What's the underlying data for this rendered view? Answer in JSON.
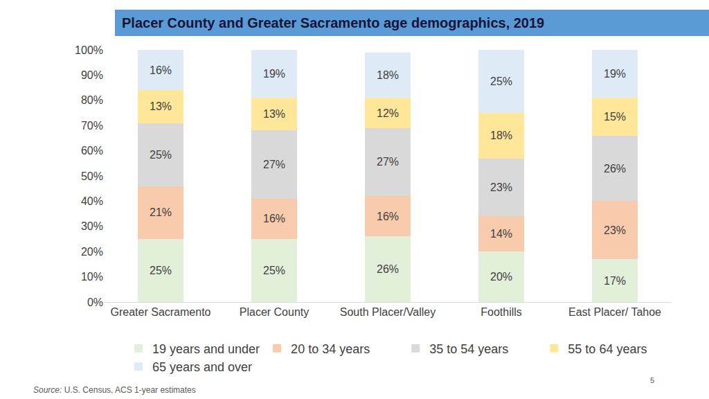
{
  "chart_data": {
    "type": "bar",
    "title": "Placer County and Greater Sacramento age demographics, 2019",
    "categories": [
      "Greater Sacramento",
      "Placer County",
      "South Placer/Valley",
      "Foothills",
      "East Placer/ Tahoe"
    ],
    "series": [
      {
        "name": "19 years and under",
        "color": "#e2efd9",
        "values": [
          25,
          25,
          26,
          20,
          17
        ],
        "value_labels": [
          "25%",
          "25%",
          "26%",
          "20%",
          "17%"
        ]
      },
      {
        "name": "20 to 34 years",
        "color": "#f8cbad",
        "values": [
          21,
          16,
          16,
          14,
          23
        ],
        "value_labels": [
          "21%",
          "16%",
          "16%",
          "14%",
          "23%"
        ]
      },
      {
        "name": "35 to 54 years",
        "color": "#d9d9d9",
        "values": [
          25,
          27,
          27,
          23,
          26
        ],
        "value_labels": [
          "25%",
          "27%",
          "27%",
          "23%",
          "26%"
        ]
      },
      {
        "name": "55 to 64 years",
        "color": "#ffe699",
        "values": [
          13,
          13,
          12,
          18,
          15
        ],
        "value_labels": [
          "13%",
          "13%",
          "12%",
          "18%",
          "15%"
        ]
      },
      {
        "name": "65 years and over",
        "color": "#deebf7",
        "values": [
          16,
          19,
          18,
          25,
          19
        ],
        "value_labels": [
          "16%",
          "19%",
          "18%",
          "25%",
          "19%"
        ]
      }
    ],
    "stacked": true,
    "data_labels": true,
    "ylim": [
      0,
      100
    ],
    "yticks": [
      {
        "value": 0,
        "label": "0%"
      },
      {
        "value": 10,
        "label": "10%"
      },
      {
        "value": 20,
        "label": "20%"
      },
      {
        "value": 30,
        "label": "30%"
      },
      {
        "value": 40,
        "label": "40%"
      },
      {
        "value": 50,
        "label": "50%"
      },
      {
        "value": 60,
        "label": "60%"
      },
      {
        "value": 70,
        "label": "70%"
      },
      {
        "value": 80,
        "label": "80%"
      },
      {
        "value": 90,
        "label": "90%"
      },
      {
        "value": 100,
        "label": "100%"
      }
    ],
    "grid": false,
    "legend": "bottom",
    "annotations": [
      "Source: U.S. Census, ACS 1-year estimates",
      "5"
    ]
  }
}
